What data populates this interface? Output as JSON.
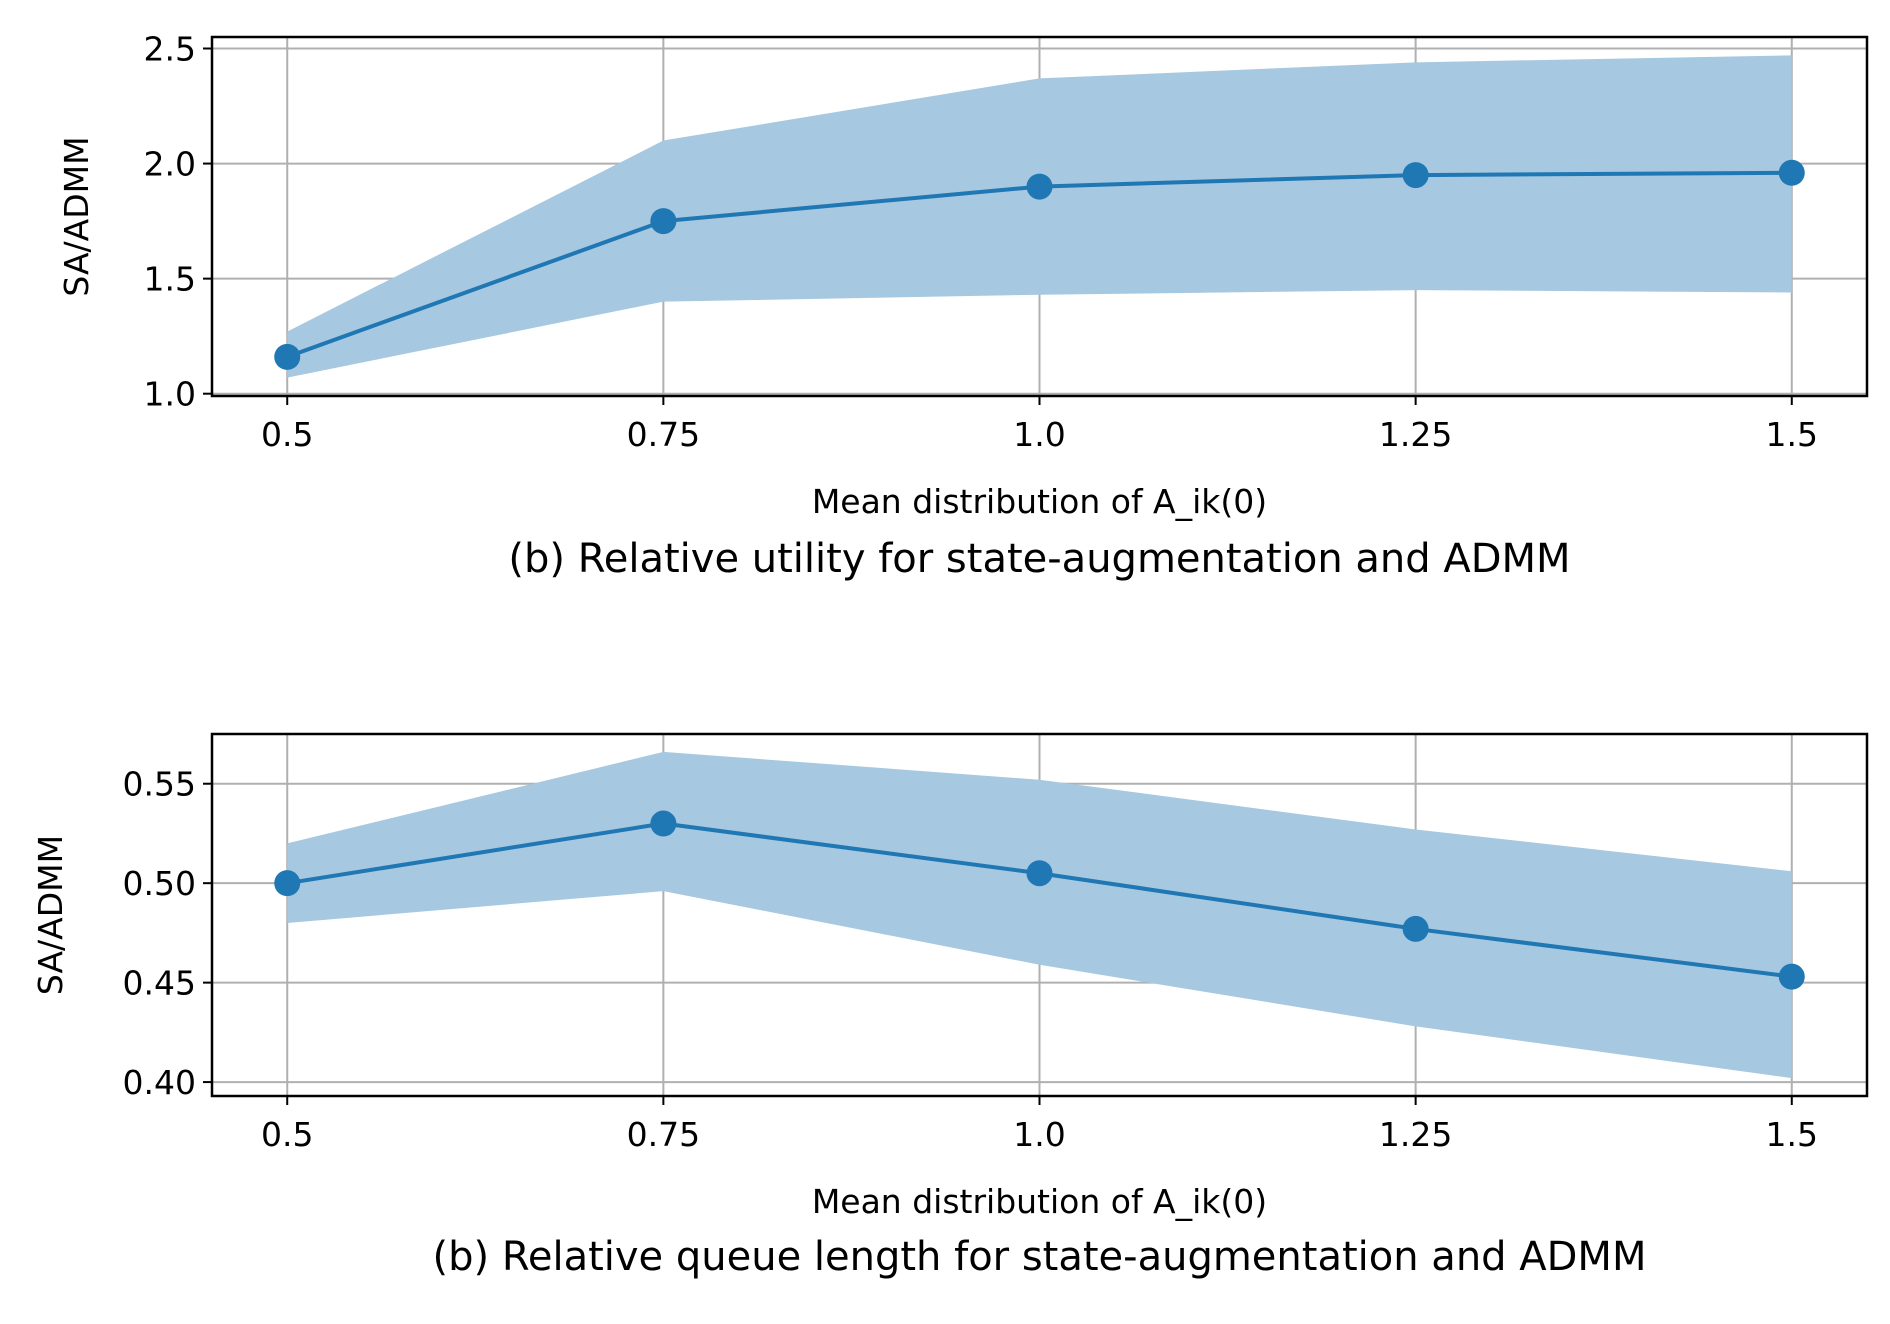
{
  "chart_data": [
    {
      "type": "line",
      "title": "(b) Relative utility for state-augmentation and ADMM",
      "xlabel": "Mean distribution of A_ik(0)",
      "ylabel": "SA/ADMM",
      "x": [
        0.5,
        0.75,
        1.0,
        1.25,
        1.5
      ],
      "xlim": [
        0.45,
        1.55
      ],
      "ylim": [
        0.99,
        2.55
      ],
      "xticks": [
        0.5,
        0.75,
        1.0,
        1.25,
        1.5
      ],
      "xtick_labels": [
        "0.5",
        "0.75",
        "1.0",
        "1.25",
        "1.5"
      ],
      "yticks": [
        1.0,
        1.5,
        2.0,
        2.5
      ],
      "ytick_labels": [
        "1.0",
        "1.5",
        "2.0",
        "2.5"
      ],
      "grid": true,
      "series": [
        {
          "name": "SA/ADMM",
          "values": [
            1.16,
            1.75,
            1.9,
            1.95,
            1.96
          ],
          "band_lower": [
            1.07,
            1.4,
            1.43,
            1.45,
            1.44
          ],
          "band_upper": [
            1.27,
            2.1,
            2.37,
            2.44,
            2.47
          ],
          "color": "#1f77b4",
          "band_color": "#a6c8e0"
        }
      ]
    },
    {
      "type": "line",
      "title": "(b) Relative queue length for state-augmentation and ADMM",
      "xlabel": "Mean distribution of A_ik(0)",
      "ylabel": "SA/ADMM",
      "x": [
        0.5,
        0.75,
        1.0,
        1.25,
        1.5
      ],
      "xlim": [
        0.45,
        1.55
      ],
      "ylim": [
        0.393,
        0.575
      ],
      "xticks": [
        0.5,
        0.75,
        1.0,
        1.25,
        1.5
      ],
      "xtick_labels": [
        "0.5",
        "0.75",
        "1.0",
        "1.25",
        "1.5"
      ],
      "yticks": [
        0.4,
        0.45,
        0.5,
        0.55
      ],
      "ytick_labels": [
        "0.40",
        "0.45",
        "0.50",
        "0.55"
      ],
      "grid": true,
      "series": [
        {
          "name": "SA/ADMM",
          "values": [
            0.5,
            0.53,
            0.505,
            0.477,
            0.453
          ],
          "band_lower": [
            0.48,
            0.496,
            0.459,
            0.428,
            0.402
          ],
          "band_upper": [
            0.52,
            0.566,
            0.552,
            0.527,
            0.506
          ],
          "color": "#1f77b4",
          "band_color": "#a6c8e0"
        }
      ]
    }
  ]
}
